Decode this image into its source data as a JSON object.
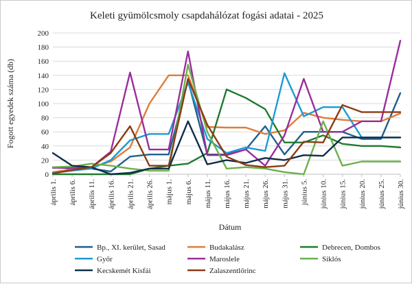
{
  "chart_data": {
    "type": "line",
    "title": "Keleti gyümölcsmoly csapdahálózat fogási adatai - 2025",
    "xlabel": "Dátum",
    "ylabel": "Fogott egyedek száma (db)",
    "ylim": [
      0,
      200
    ],
    "yticks": [
      0,
      20,
      40,
      60,
      80,
      100,
      120,
      140,
      160,
      180,
      200
    ],
    "grid": true,
    "legend_position": "bottom",
    "categories": [
      "április 1.",
      "április 6.",
      "április 11.",
      "április 16.",
      "április 21.",
      "április 26.",
      "május 1.",
      "május 6.",
      "május 11.",
      "május 16.",
      "május 21.",
      "május 26.",
      "május 31.",
      "június 5.",
      "június 10.",
      "június 15.",
      "június 20.",
      "június 25.",
      "június 30."
    ],
    "series": [
      {
        "name": "Bp., XI. kerület, Sasad",
        "color": "#1f5f8b",
        "values": [
          10,
          8,
          8,
          4,
          25,
          28,
          28,
          133,
          28,
          28,
          35,
          68,
          28,
          60,
          60,
          60,
          50,
          50,
          115
        ]
      },
      {
        "name": "Budakalász",
        "color": "#e07b39",
        "values": [
          3,
          7,
          10,
          18,
          38,
          100,
          140,
          140,
          67,
          66,
          66,
          57,
          62,
          87,
          80,
          77,
          75,
          75,
          86
        ]
      },
      {
        "name": "Debrecen, Dombos",
        "color": "#1f7a2e",
        "values": [
          0,
          0,
          0,
          0,
          0,
          8,
          12,
          15,
          30,
          120,
          108,
          92,
          45,
          45,
          55,
          43,
          40,
          40,
          38
        ]
      },
      {
        "name": "Győr",
        "color": "#1a9ad6",
        "values": [
          2,
          5,
          8,
          20,
          48,
          57,
          57,
          130,
          50,
          30,
          38,
          33,
          143,
          82,
          95,
          95,
          52,
          52,
          52
        ]
      },
      {
        "name": "Maroslele",
        "color": "#9b2c9b",
        "values": [
          9,
          9,
          10,
          32,
          144,
          35,
          35,
          174,
          27,
          27,
          35,
          12,
          55,
          135,
          60,
          60,
          75,
          75,
          189
        ]
      },
      {
        "name": "Siklós",
        "color": "#6ab04c",
        "values": [
          10,
          11,
          15,
          12,
          8,
          5,
          5,
          155,
          60,
          8,
          10,
          8,
          3,
          0,
          75,
          12,
          18,
          18,
          18
        ]
      },
      {
        "name": "Kecskemét Kisfái",
        "color": "#0f2d4a",
        "values": [
          30,
          12,
          10,
          0,
          2,
          8,
          8,
          75,
          14,
          20,
          16,
          23,
          20,
          27,
          26,
          52,
          52,
          52,
          52
        ]
      },
      {
        "name": "Zalaszentlőrinc",
        "color": "#8b3a12",
        "values": [
          1,
          6,
          10,
          30,
          68,
          12,
          12,
          135,
          70,
          25,
          13,
          10,
          12,
          46,
          45,
          98,
          88,
          88,
          88
        ]
      }
    ]
  }
}
